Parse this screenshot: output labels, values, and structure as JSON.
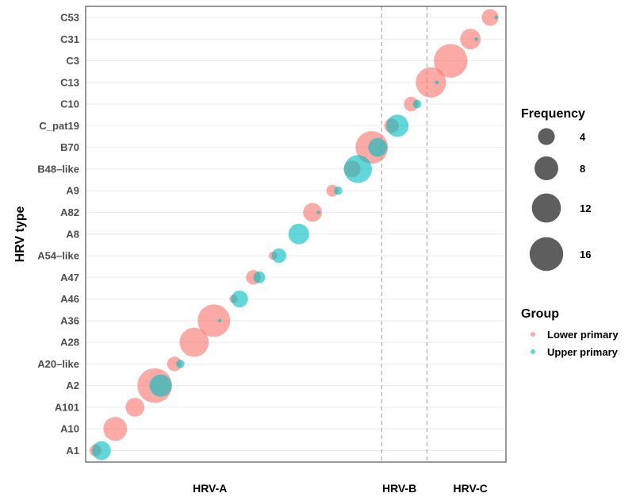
{
  "chart_data": {
    "type": "scatter",
    "ylabel": "HRV type",
    "categories": [
      "A1",
      "A10",
      "A101",
      "A2",
      "A20–like",
      "A28",
      "A36",
      "A46",
      "A47",
      "A54–like",
      "A8",
      "A82",
      "A9",
      "B48–like",
      "B70",
      "C_pat19",
      "C10",
      "C13",
      "C3",
      "C31",
      "C53"
    ],
    "groups": [
      "HRV-A",
      "HRV-B",
      "HRV-C"
    ],
    "size_legend": {
      "title": "Frequency",
      "breaks": [
        4,
        8,
        12,
        16
      ]
    },
    "color_legend": {
      "title": "Group"
    },
    "colors": {
      "Lower primary": "#F8766D",
      "Upper primary": "#00BFC4",
      "dashed_line": "#aaaaaa",
      "gridline": "#ebebeb"
    },
    "series": [
      {
        "name": "Lower primary",
        "points": [
          {
            "x": 0.5,
            "type": "A1",
            "freq": 2
          },
          {
            "x": 1.5,
            "type": "A10",
            "freq": 8
          },
          {
            "x": 2.5,
            "type": "A101",
            "freq": 5
          },
          {
            "x": 3.5,
            "type": "A2",
            "freq": 17
          },
          {
            "x": 4.5,
            "type": "A20–like",
            "freq": 3
          },
          {
            "x": 5.5,
            "type": "A28",
            "freq": 12
          },
          {
            "x": 6.5,
            "type": "A36",
            "freq": 15
          },
          {
            "x": 7.5,
            "type": "A46",
            "freq": 1
          },
          {
            "x": 8.5,
            "type": "A47",
            "freq": 3
          },
          {
            "x": 9.5,
            "type": "A54–like",
            "freq": 1
          },
          {
            "x": 10.5,
            "type": "A8",
            "freq": 0
          },
          {
            "x": 11.5,
            "type": "A82",
            "freq": 5
          },
          {
            "x": 12.5,
            "type": "A9",
            "freq": 2
          },
          {
            "x": 13.5,
            "type": "B48–like",
            "freq": 4
          },
          {
            "x": 14.5,
            "type": "B70",
            "freq": 15
          },
          {
            "x": 15.5,
            "type": "C_pat19",
            "freq": 3
          },
          {
            "x": 16.5,
            "type": "C10",
            "freq": 3
          },
          {
            "x": 17.5,
            "type": "C13",
            "freq": 13
          },
          {
            "x": 18.5,
            "type": "C3",
            "freq": 16
          },
          {
            "x": 19.5,
            "type": "C31",
            "freq": 6
          },
          {
            "x": 20.5,
            "type": "C53",
            "freq": 4
          }
        ]
      },
      {
        "name": "Upper primary",
        "points": [
          {
            "x": 0.8,
            "type": "A1",
            "freq": 5
          },
          {
            "x": 1.8,
            "type": "A10",
            "freq": 0
          },
          {
            "x": 2.8,
            "type": "A101",
            "freq": 0
          },
          {
            "x": 3.8,
            "type": "A2",
            "freq": 7
          },
          {
            "x": 4.8,
            "type": "A20–like",
            "freq": 1
          },
          {
            "x": 5.8,
            "type": "A28",
            "freq": 0
          },
          {
            "x": 6.8,
            "type": "A36",
            "freq": 0.2
          },
          {
            "x": 7.8,
            "type": "A46",
            "freq": 4
          },
          {
            "x": 8.8,
            "type": "A47",
            "freq": 2
          },
          {
            "x": 9.8,
            "type": "A54–like",
            "freq": 3
          },
          {
            "x": 10.8,
            "type": "A8",
            "freq": 6
          },
          {
            "x": 11.8,
            "type": "A82",
            "freq": 0.2
          },
          {
            "x": 12.8,
            "type": "A9",
            "freq": 1
          },
          {
            "x": 13.8,
            "type": "B48–like",
            "freq": 11
          },
          {
            "x": 14.8,
            "type": "B70",
            "freq": 5
          },
          {
            "x": 15.8,
            "type": "C_pat19",
            "freq": 7
          },
          {
            "x": 16.8,
            "type": "C10",
            "freq": 1
          },
          {
            "x": 17.8,
            "type": "C13",
            "freq": 0.2
          },
          {
            "x": 18.8,
            "type": "C3",
            "freq": 0
          },
          {
            "x": 19.8,
            "type": "C31",
            "freq": 0.2
          },
          {
            "x": 20.8,
            "type": "C53",
            "freq": 0.2
          }
        ]
      }
    ],
    "xlim": [
      0,
      21.3
    ],
    "group_boundaries": [
      15,
      17.3
    ],
    "group_label_positions": [
      6.3,
      15.9,
      19.5
    ],
    "legend_position": "right",
    "grid": true
  }
}
